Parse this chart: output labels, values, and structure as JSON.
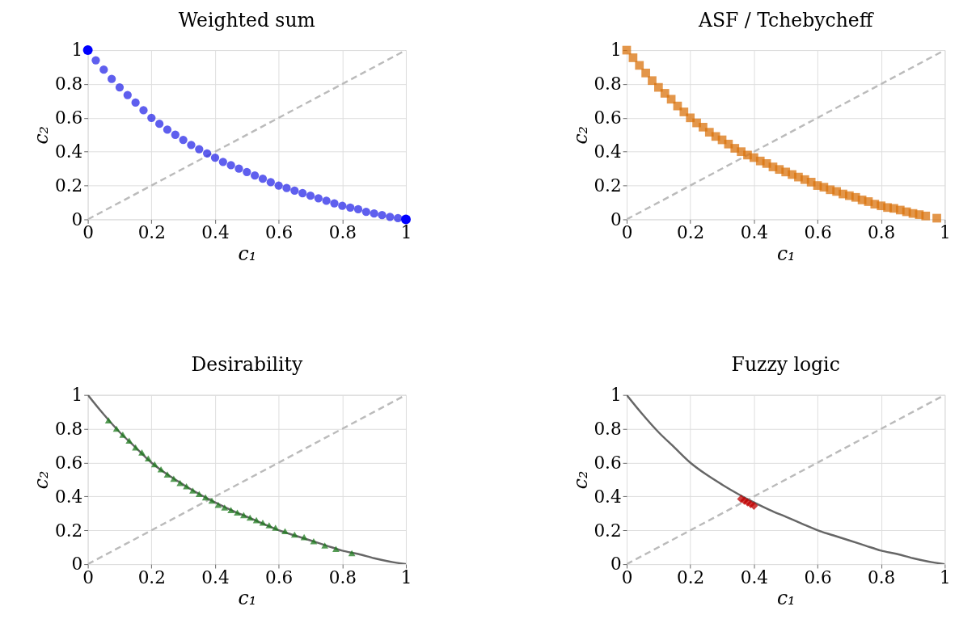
{
  "chart_data": [
    {
      "type": "scatter",
      "title": "Weighted sum",
      "xlabel": "c₁",
      "ylabel": "c₂",
      "xlim": [
        0,
        1
      ],
      "ylim": [
        0,
        1
      ],
      "xticks": [
        0,
        0.2,
        0.4,
        0.6,
        0.8,
        1
      ],
      "yticks": [
        0,
        0.2,
        0.4,
        0.6,
        0.8,
        1
      ],
      "grid": true,
      "series": [
        {
          "type": "line",
          "color": "#bbbbbb",
          "line_style": "dashed",
          "marker": "none",
          "x": [
            0,
            1
          ],
          "values": [
            0,
            1
          ]
        },
        {
          "type": "scatter",
          "color": "#2a2ae8",
          "marker": "circle",
          "x": [
            0.025,
            0.05,
            0.075,
            0.1,
            0.125,
            0.15,
            0.175,
            0.2,
            0.225,
            0.25,
            0.275,
            0.3,
            0.325,
            0.35,
            0.375,
            0.4,
            0.425,
            0.45,
            0.475,
            0.5,
            0.525,
            0.55,
            0.575,
            0.6,
            0.625,
            0.65,
            0.675,
            0.7,
            0.725,
            0.75,
            0.775,
            0.8,
            0.825,
            0.85,
            0.875,
            0.9,
            0.925,
            0.95,
            0.975
          ],
          "values": [
            0.94,
            0.885,
            0.83,
            0.78,
            0.735,
            0.69,
            0.645,
            0.6,
            0.565,
            0.53,
            0.5,
            0.47,
            0.44,
            0.415,
            0.39,
            0.365,
            0.34,
            0.32,
            0.3,
            0.28,
            0.26,
            0.24,
            0.22,
            0.2,
            0.185,
            0.17,
            0.155,
            0.14,
            0.125,
            0.11,
            0.095,
            0.08,
            0.07,
            0.06,
            0.045,
            0.035,
            0.025,
            0.015,
            0.007
          ]
        },
        {
          "type": "scatter",
          "color": "#0000ff",
          "marker": "circle",
          "x": [
            0,
            1
          ],
          "values": [
            1,
            0
          ]
        }
      ]
    },
    {
      "type": "scatter",
      "title": "ASF / Tchebycheff",
      "xlabel": "c₁",
      "ylabel": "c₂",
      "xlim": [
        0,
        1
      ],
      "ylim": [
        0,
        1
      ],
      "xticks": [
        0,
        0.2,
        0.4,
        0.6,
        0.8,
        1
      ],
      "yticks": [
        0,
        0.2,
        0.4,
        0.6,
        0.8,
        1
      ],
      "grid": true,
      "series": [
        {
          "type": "line",
          "color": "#bbbbbb",
          "line_style": "dashed",
          "marker": "none",
          "x": [
            0,
            1
          ],
          "values": [
            0,
            1
          ]
        },
        {
          "type": "scatter",
          "color": "#d9730d",
          "marker": "square",
          "x": [
            0,
            0.02,
            0.04,
            0.06,
            0.08,
            0.1,
            0.12,
            0.14,
            0.16,
            0.18,
            0.2,
            0.22,
            0.24,
            0.26,
            0.28,
            0.3,
            0.32,
            0.34,
            0.36,
            0.38,
            0.4,
            0.42,
            0.44,
            0.46,
            0.48,
            0.5,
            0.52,
            0.54,
            0.56,
            0.58,
            0.6,
            0.62,
            0.64,
            0.66,
            0.68,
            0.7,
            0.72,
            0.74,
            0.76,
            0.78,
            0.8,
            0.82,
            0.84,
            0.86,
            0.88,
            0.9,
            0.92,
            0.94,
            0.975
          ],
          "values": [
            1,
            0.955,
            0.91,
            0.865,
            0.82,
            0.78,
            0.745,
            0.71,
            0.67,
            0.635,
            0.6,
            0.57,
            0.545,
            0.515,
            0.49,
            0.47,
            0.445,
            0.42,
            0.4,
            0.38,
            0.365,
            0.345,
            0.33,
            0.31,
            0.295,
            0.28,
            0.265,
            0.25,
            0.235,
            0.22,
            0.2,
            0.19,
            0.175,
            0.165,
            0.15,
            0.14,
            0.13,
            0.115,
            0.105,
            0.09,
            0.08,
            0.07,
            0.065,
            0.055,
            0.045,
            0.035,
            0.028,
            0.02,
            0.007
          ]
        }
      ]
    },
    {
      "type": "scatter",
      "title": "Desirability",
      "xlabel": "c₁",
      "ylabel": "c₂",
      "xlim": [
        0,
        1
      ],
      "ylim": [
        0,
        1
      ],
      "xticks": [
        0,
        0.2,
        0.4,
        0.6,
        0.8,
        1
      ],
      "yticks": [
        0,
        0.2,
        0.4,
        0.6,
        0.8,
        1
      ],
      "grid": true,
      "series": [
        {
          "type": "line",
          "color": "#bbbbbb",
          "line_style": "dashed",
          "marker": "none",
          "x": [
            0,
            1
          ],
          "values": [
            0,
            1
          ]
        },
        {
          "type": "line",
          "color": "#666666",
          "line_style": "solid",
          "marker": "none",
          "x": [
            0,
            0.05,
            0.1,
            0.15,
            0.2,
            0.25,
            0.3,
            0.35,
            0.4,
            0.45,
            0.5,
            0.55,
            0.6,
            0.65,
            0.7,
            0.75,
            0.8,
            0.85,
            0.9,
            0.95,
            1
          ],
          "values": [
            1,
            0.885,
            0.78,
            0.69,
            0.6,
            0.53,
            0.47,
            0.415,
            0.365,
            0.32,
            0.28,
            0.24,
            0.2,
            0.17,
            0.14,
            0.11,
            0.08,
            0.06,
            0.035,
            0.015,
            0
          ]
        },
        {
          "type": "scatter",
          "color": "#1e7b1e",
          "marker": "triangle",
          "x": [
            0.065,
            0.09,
            0.11,
            0.13,
            0.15,
            0.17,
            0.19,
            0.21,
            0.23,
            0.25,
            0.27,
            0.29,
            0.31,
            0.33,
            0.35,
            0.37,
            0.39,
            0.41,
            0.43,
            0.45,
            0.47,
            0.49,
            0.51,
            0.53,
            0.55,
            0.57,
            0.59,
            0.62,
            0.65,
            0.68,
            0.71,
            0.745,
            0.78,
            0.83
          ],
          "values": [
            0.85,
            0.8,
            0.765,
            0.73,
            0.69,
            0.66,
            0.625,
            0.59,
            0.56,
            0.53,
            0.505,
            0.48,
            0.46,
            0.435,
            0.415,
            0.395,
            0.375,
            0.35,
            0.335,
            0.32,
            0.305,
            0.29,
            0.275,
            0.26,
            0.245,
            0.23,
            0.215,
            0.195,
            0.175,
            0.16,
            0.135,
            0.11,
            0.09,
            0.065
          ]
        }
      ]
    },
    {
      "type": "scatter",
      "title": "Fuzzy logic",
      "xlabel": "c₁",
      "ylabel": "c₂",
      "xlim": [
        0,
        1
      ],
      "ylim": [
        0,
        1
      ],
      "xticks": [
        0,
        0.2,
        0.4,
        0.6,
        0.8,
        1
      ],
      "yticks": [
        0,
        0.2,
        0.4,
        0.6,
        0.8,
        1
      ],
      "grid": true,
      "series": [
        {
          "type": "line",
          "color": "#bbbbbb",
          "line_style": "dashed",
          "marker": "none",
          "x": [
            0,
            1
          ],
          "values": [
            0,
            1
          ]
        },
        {
          "type": "line",
          "color": "#666666",
          "line_style": "solid",
          "marker": "none",
          "x": [
            0,
            0.05,
            0.1,
            0.15,
            0.2,
            0.25,
            0.3,
            0.35,
            0.4,
            0.45,
            0.5,
            0.55,
            0.6,
            0.65,
            0.7,
            0.75,
            0.8,
            0.85,
            0.9,
            0.95,
            1
          ],
          "values": [
            1,
            0.885,
            0.78,
            0.69,
            0.6,
            0.53,
            0.47,
            0.415,
            0.365,
            0.32,
            0.28,
            0.24,
            0.2,
            0.17,
            0.14,
            0.11,
            0.08,
            0.06,
            0.035,
            0.015,
            0
          ]
        },
        {
          "type": "scatter",
          "color": "#c00000",
          "marker": "diamond",
          "x": [
            0.36,
            0.37,
            0.38,
            0.39,
            0.4
          ],
          "values": [
            0.385,
            0.375,
            0.365,
            0.355,
            0.345
          ]
        }
      ]
    }
  ]
}
